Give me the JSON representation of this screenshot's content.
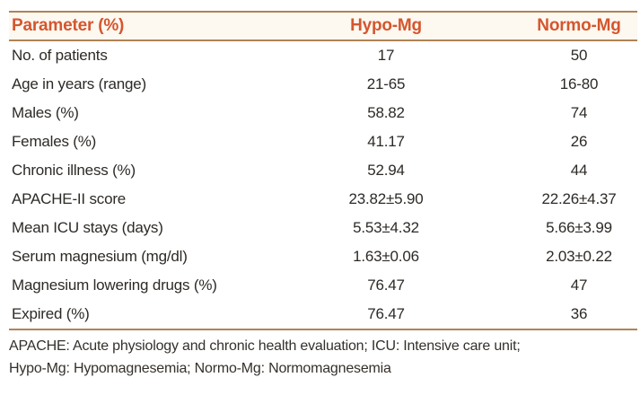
{
  "table": {
    "columns": {
      "parameter": "Parameter (%)",
      "hypo": "Hypo-Mg",
      "normo": "Normo-Mg"
    },
    "rows": [
      {
        "parameter": "No. of patients",
        "hypo": "17",
        "normo": "50"
      },
      {
        "parameter": "Age in years (range)",
        "hypo": "21-65",
        "normo": "16-80"
      },
      {
        "parameter": "Males (%)",
        "hypo": "58.82",
        "normo": "74"
      },
      {
        "parameter": "Females (%)",
        "hypo": "41.17",
        "normo": "26"
      },
      {
        "parameter": "Chronic illness (%)",
        "hypo": "52.94",
        "normo": "44"
      },
      {
        "parameter": "APACHE-II score",
        "hypo": "23.82±5.90",
        "normo": "22.26±4.37"
      },
      {
        "parameter": "Mean ICU stays (days)",
        "hypo": "5.53±4.32",
        "normo": "5.66±3.99"
      },
      {
        "parameter": "Serum magnesium (mg/dl)",
        "hypo": "1.63±0.06",
        "normo": "2.03±0.22"
      },
      {
        "parameter": "Magnesium lowering drugs (%)",
        "hypo": "76.47",
        "normo": "47"
      },
      {
        "parameter": "Expired (%)",
        "hypo": "76.47",
        "normo": "36"
      }
    ],
    "footnotes": {
      "line1": "APACHE: Acute physiology and chronic health evaluation; ICU: Intensive care unit;",
      "line2": "Hypo-Mg: Hypomagnesemia; Normo-Mg: Normomagnesemia"
    }
  },
  "colors": {
    "rule": "#b08355",
    "header_text": "#d4562e",
    "header_background": "#fdf8f0",
    "body_text": "#2d2a26",
    "page_background": "#ffffff"
  }
}
